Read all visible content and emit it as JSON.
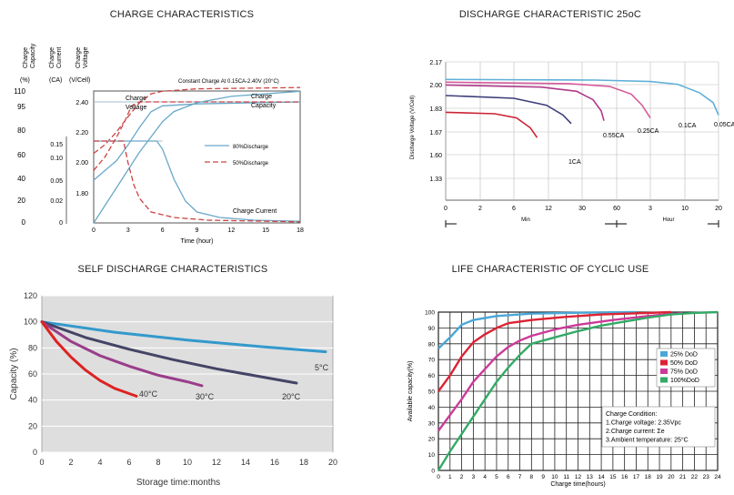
{
  "chart_data": [
    {
      "type": "line",
      "title": "CHARGE CHARACTERISTICS",
      "subtitle": "Constant Charge At 0.15CA-2.40V (20°C)",
      "xlabel": "Time (hour)",
      "x_ticks": [
        "0",
        "3",
        "6",
        "9",
        "12",
        "15",
        "18"
      ],
      "xlim": [
        0,
        18
      ],
      "axes": [
        {
          "label": "Charge Capacity",
          "unit": "(%)",
          "ticks": [
            "110",
            "95",
            "80",
            "60",
            "40",
            "20",
            "0"
          ]
        },
        {
          "label": "Charge Current",
          "unit": "(CA)",
          "ticks": [
            "0.15",
            "0.10",
            "0.05",
            "0.02",
            "0"
          ]
        },
        {
          "label": "Charge Voltage",
          "unit": "(V/Cell)",
          "ticks": [
            "2.40",
            "2.20",
            "2.00",
            "1.80"
          ]
        }
      ],
      "legend": [
        "80%Discharge",
        "50%Discharge"
      ],
      "annotations": [
        "Charge Voltage",
        "Charge Capacity",
        "Charge Current"
      ],
      "series": [
        {
          "name": "80%Discharge",
          "curve": "Charge Voltage",
          "values": [
            [
              0,
              2.0
            ],
            [
              1,
              2.05
            ],
            [
              2,
              2.1
            ],
            [
              3,
              2.18
            ],
            [
              4,
              2.27
            ],
            [
              5,
              2.35
            ],
            [
              6,
              2.38
            ],
            [
              9,
              2.39
            ],
            [
              18,
              2.4
            ]
          ]
        },
        {
          "name": "50%Discharge",
          "curve": "Charge Voltage",
          "values": [
            [
              0,
              2.05
            ],
            [
              1,
              2.12
            ],
            [
              2,
              2.22
            ],
            [
              2.7,
              2.3
            ],
            [
              3.3,
              2.38
            ],
            [
              4,
              2.4
            ],
            [
              18,
              2.4
            ]
          ]
        },
        {
          "name": "80%Discharge",
          "curve": "Charge Capacity",
          "values": [
            [
              0,
              0
            ],
            [
              2,
              28
            ],
            [
              4,
              56
            ],
            [
              5,
              68
            ],
            [
              6,
              80
            ],
            [
              7,
              88
            ],
            [
              9,
              95
            ],
            [
              12,
              100
            ],
            [
              18,
              104
            ]
          ]
        },
        {
          "name": "50%Discharge",
          "curve": "Charge Capacity",
          "values": [
            [
              0,
              55
            ],
            [
              1,
              62
            ],
            [
              2,
              72
            ],
            [
              3,
              84
            ],
            [
              4,
              95
            ],
            [
              5,
              102
            ],
            [
              6,
              104
            ],
            [
              9,
              106
            ],
            [
              18,
              107
            ]
          ]
        },
        {
          "name": "80%Discharge",
          "curve": "Charge Current",
          "values": [
            [
              0,
              0.15
            ],
            [
              5.5,
              0.15
            ],
            [
              6,
              0.135
            ],
            [
              7,
              0.08
            ],
            [
              8,
              0.04
            ],
            [
              9,
              0.02
            ],
            [
              11,
              0.01
            ],
            [
              14,
              0.005
            ],
            [
              18,
              0.003
            ]
          ]
        },
        {
          "name": "50%Discharge",
          "curve": "Charge Current",
          "values": [
            [
              0,
              0.15
            ],
            [
              2.6,
              0.15
            ],
            [
              3,
              0.11
            ],
            [
              3.5,
              0.07
            ],
            [
              4,
              0.045
            ],
            [
              5,
              0.02
            ],
            [
              7,
              0.01
            ],
            [
              10,
              0.005
            ],
            [
              18,
              0.002
            ]
          ]
        }
      ]
    },
    {
      "type": "line",
      "title": "DISCHARGE CHARACTERISTIC 25oC",
      "ylabel": "Discharge Voltage (V/Cell)",
      "y_ticks": [
        "2.17",
        "2.00",
        "1.83",
        "1.67",
        "1.60",
        "1.33"
      ],
      "x_ticks": [
        "0",
        "2",
        "6",
        "12",
        "30",
        "60",
        "3",
        "10",
        "20"
      ],
      "x_group_labels": [
        "Min",
        "Hour"
      ],
      "series": [
        {
          "name": "0.05CA",
          "values": [
            [
              0,
              2.045
            ],
            [
              0.55,
              2.04
            ],
            [
              0.75,
              2.03
            ],
            [
              0.85,
              2.01
            ],
            [
              0.93,
              1.95
            ],
            [
              0.98,
              1.88
            ],
            [
              1.0,
              1.79
            ]
          ]
        },
        {
          "name": "0.1CA",
          "values": [
            [
              0,
              2.025
            ],
            [
              0.45,
              2.015
            ],
            [
              0.6,
              1.995
            ],
            [
              0.68,
              1.94
            ],
            [
              0.72,
              1.86
            ],
            [
              0.75,
              1.77
            ]
          ]
        },
        {
          "name": "0.25CA",
          "values": [
            [
              0,
              2.005
            ],
            [
              0.35,
              1.99
            ],
            [
              0.48,
              1.96
            ],
            [
              0.54,
              1.9
            ],
            [
              0.57,
              1.82
            ],
            [
              0.58,
              1.75
            ]
          ]
        },
        {
          "name": "0.55CA",
          "values": [
            [
              0,
              1.93
            ],
            [
              0.25,
              1.91
            ],
            [
              0.37,
              1.86
            ],
            [
              0.43,
              1.79
            ],
            [
              0.46,
              1.73
            ]
          ]
        },
        {
          "name": "1CA",
          "values": [
            [
              0,
              1.81
            ],
            [
              0.18,
              1.8
            ],
            [
              0.26,
              1.77
            ],
            [
              0.31,
              1.7
            ],
            [
              0.335,
              1.63
            ]
          ]
        }
      ]
    },
    {
      "type": "line",
      "title": "SELF DISCHARGE CHARACTERISTICS",
      "xlabel": "Storage time:months",
      "ylabel": "Capacity (%)",
      "x_ticks": [
        "0",
        "2",
        "4",
        "6",
        "8",
        "10",
        "12",
        "14",
        "16",
        "18",
        "20"
      ],
      "y_ticks": [
        "0",
        "20",
        "40",
        "60",
        "80",
        "100",
        "120"
      ],
      "xlim": [
        0,
        20
      ],
      "ylim": [
        0,
        120
      ],
      "series": [
        {
          "name": "5°C",
          "color": "#3399cc",
          "values": [
            [
              0,
              100
            ],
            [
              5,
              92
            ],
            [
              10,
              86
            ],
            [
              15,
              81
            ],
            [
              19.5,
              77
            ]
          ]
        },
        {
          "name": "20°C",
          "color": "#444466",
          "values": [
            [
              0,
              100
            ],
            [
              3,
              88
            ],
            [
              6,
              79
            ],
            [
              9,
              71
            ],
            [
              12,
              64
            ],
            [
              15,
              58
            ],
            [
              17.5,
              53
            ]
          ]
        },
        {
          "name": "30°C",
          "color": "#9a3d8a",
          "values": [
            [
              0,
              100
            ],
            [
              2,
              85
            ],
            [
              4,
              74
            ],
            [
              6,
              66
            ],
            [
              8,
              59
            ],
            [
              10,
              54
            ],
            [
              11,
              51
            ]
          ]
        },
        {
          "name": "40°C",
          "color": "#dd2222",
          "values": [
            [
              0,
              100
            ],
            [
              1,
              85
            ],
            [
              2,
              73
            ],
            [
              3,
              63
            ],
            [
              4,
              55
            ],
            [
              5,
              49
            ],
            [
              6.5,
              43
            ]
          ]
        }
      ]
    },
    {
      "type": "line",
      "title": "LIFE CHARACTERISTIC OF CYCLIC USE",
      "xlabel": "Charge time(hours)",
      "ylabel": "Available capacity(%)",
      "x_ticks": [
        "0",
        "1",
        "2",
        "3",
        "4",
        "5",
        "6",
        "7",
        "8",
        "9",
        "10",
        "11",
        "12",
        "13",
        "14",
        "15",
        "16",
        "17",
        "18",
        "19",
        "20",
        "21",
        "22",
        "23",
        "24"
      ],
      "y_ticks": [
        "0",
        "10",
        "20",
        "30",
        "40",
        "50",
        "60",
        "70",
        "80",
        "90",
        "100"
      ],
      "xlim": [
        0,
        24
      ],
      "ylim": [
        0,
        100
      ],
      "legend": [
        "25%  DoD",
        "50%  DoD",
        "75%  DoD",
        "100%DoD"
      ],
      "note": [
        "Charge Condition:",
        "1.Charge voltage: 2.35Vpc",
        "2.Charge current: Σe",
        "3.Ambient temperature: 25°C"
      ],
      "series": [
        {
          "name": "25%  DoD",
          "color": "#4aa6d6",
          "values": [
            [
              0,
              77
            ],
            [
              1,
              84
            ],
            [
              2,
              92
            ],
            [
              3,
              95
            ],
            [
              5,
              97.5
            ],
            [
              8,
              99
            ],
            [
              12,
              99.6
            ],
            [
              17,
              100
            ]
          ]
        },
        {
          "name": "50%  DoD",
          "color": "#dd2233",
          "values": [
            [
              0,
              50
            ],
            [
              1,
              60
            ],
            [
              2,
              72
            ],
            [
              3,
              81
            ],
            [
              4,
              86
            ],
            [
              5,
              90
            ],
            [
              6,
              93
            ],
            [
              8,
              95
            ],
            [
              11,
              97
            ],
            [
              14,
              98.5
            ],
            [
              18,
              99.5
            ],
            [
              20,
              100
            ]
          ]
        },
        {
          "name": "75%  DoD",
          "color": "#cc3a99",
          "values": [
            [
              0,
              25
            ],
            [
              1,
              35
            ],
            [
              2,
              45
            ],
            [
              3,
              56
            ],
            [
              4,
              64
            ],
            [
              5,
              72
            ],
            [
              6,
              78
            ],
            [
              7,
              82
            ],
            [
              8,
              85
            ],
            [
              10,
              89
            ],
            [
              12,
              92
            ],
            [
              15,
              95
            ],
            [
              18,
              97.5
            ],
            [
              21,
              99.5
            ]
          ]
        },
        {
          "name": "100%DoD",
          "color": "#33aa66",
          "values": [
            [
              0,
              0
            ],
            [
              1,
              12
            ],
            [
              2,
              23
            ],
            [
              3,
              34
            ],
            [
              4,
              45
            ],
            [
              5,
              56
            ],
            [
              6,
              65
            ],
            [
              7,
              73
            ],
            [
              8,
              80
            ],
            [
              10,
              84
            ],
            [
              12,
              88
            ],
            [
              14,
              91.5
            ],
            [
              16,
              94
            ],
            [
              18,
              96.5
            ],
            [
              20,
              98.5
            ],
            [
              22,
              99.5
            ],
            [
              24,
              100
            ]
          ]
        }
      ]
    }
  ]
}
